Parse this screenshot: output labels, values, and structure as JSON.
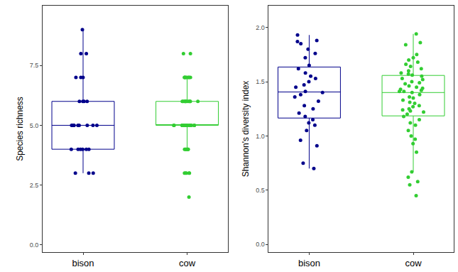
{
  "chart_data": [
    {
      "type": "box",
      "y_label": "Species richness",
      "categories": [
        "bison",
        "cow"
      ],
      "colors": [
        "#00008b",
        "#32cd32"
      ],
      "values": [
        [
          9,
          8,
          8,
          7,
          7,
          7,
          6,
          6,
          6,
          6,
          5,
          5,
          5,
          5,
          5,
          5,
          5,
          5,
          5,
          4,
          4,
          4,
          4,
          4,
          4,
          3,
          3,
          3
        ],
        [
          8,
          8,
          7,
          7,
          7,
          7,
          7,
          7,
          7,
          7,
          6,
          6,
          6,
          6,
          6,
          6,
          6,
          6,
          6,
          6,
          6,
          6,
          5,
          5,
          5,
          5,
          5,
          5,
          5,
          5,
          5,
          5,
          5,
          5,
          5,
          5,
          5,
          5,
          5,
          5,
          5,
          5,
          4,
          4,
          4,
          4,
          4,
          4,
          3,
          3,
          3,
          3,
          3,
          2
        ]
      ],
      "ylim": [
        -0.3,
        10
      ],
      "yticks": [
        {
          "value": 0,
          "label": "0.0"
        },
        2.5,
        {
          "value": 5,
          "label": "5.0"
        },
        7.5
      ],
      "grid": false
    },
    {
      "type": "box",
      "y_label": "Shannon's diversity index",
      "categories": [
        "bison",
        "cow"
      ],
      "colors": [
        "#00008b",
        "#32cd32"
      ],
      "values": [
        [
          1.93,
          1.88,
          1.87,
          1.85,
          1.8,
          1.76,
          1.72,
          1.65,
          1.62,
          1.58,
          1.55,
          1.53,
          1.5,
          1.47,
          1.45,
          1.41,
          1.4,
          1.38,
          1.36,
          1.32,
          1.28,
          1.25,
          1.21,
          1.18,
          1.15,
          1.12,
          1.1,
          1.05,
          0.96,
          0.91,
          0.75,
          0.7
        ],
        [
          1.94,
          1.86,
          1.84,
          1.75,
          1.72,
          1.7,
          1.68,
          1.66,
          1.64,
          1.62,
          1.6,
          1.58,
          1.57,
          1.56,
          1.55,
          1.53,
          1.52,
          1.5,
          1.49,
          1.48,
          1.46,
          1.45,
          1.44,
          1.43,
          1.42,
          1.41,
          1.41,
          1.4,
          1.38,
          1.36,
          1.35,
          1.33,
          1.31,
          1.3,
          1.28,
          1.27,
          1.25,
          1.24,
          1.23,
          1.22,
          1.2,
          1.18,
          1.15,
          1.12,
          1.1,
          1.05,
          1.0,
          0.97,
          0.93,
          0.85,
          0.67,
          0.62,
          0.58,
          0.55,
          0.45
        ]
      ],
      "ylim": [
        -0.07,
        2.2
      ],
      "yticks": [
        {
          "value": 0,
          "label": "0.0"
        },
        0.5,
        {
          "value": 1,
          "label": "1.0"
        },
        1.5,
        {
          "value": 2,
          "label": "2.0"
        }
      ],
      "grid": false
    }
  ]
}
